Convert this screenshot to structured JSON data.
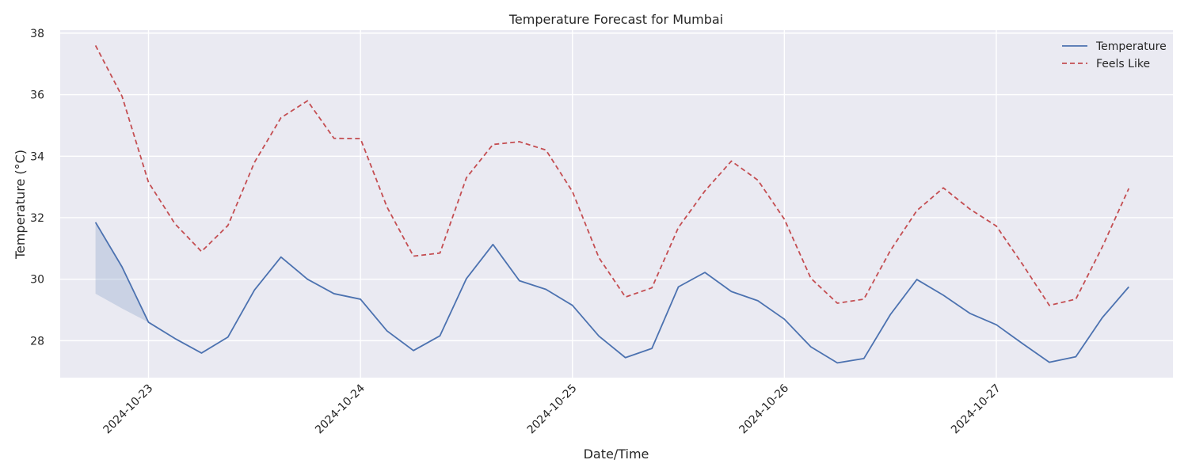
{
  "chart_data": {
    "type": "line",
    "title": "Temperature Forecast for Mumbai",
    "xlabel": "Date/Time",
    "ylabel": "Temperature (°C)",
    "x": [
      "2024-10-22 18:00",
      "2024-10-22 21:00",
      "2024-10-23 00:00",
      "2024-10-23 03:00",
      "2024-10-23 06:00",
      "2024-10-23 09:00",
      "2024-10-23 12:00",
      "2024-10-23 15:00",
      "2024-10-23 18:00",
      "2024-10-23 21:00",
      "2024-10-24 00:00",
      "2024-10-24 03:00",
      "2024-10-24 06:00",
      "2024-10-24 09:00",
      "2024-10-24 12:00",
      "2024-10-24 15:00",
      "2024-10-24 18:00",
      "2024-10-24 21:00",
      "2024-10-25 00:00",
      "2024-10-25 03:00",
      "2024-10-25 06:00",
      "2024-10-25 09:00",
      "2024-10-25 12:00",
      "2024-10-25 15:00",
      "2024-10-25 18:00",
      "2024-10-25 21:00",
      "2024-10-26 00:00",
      "2024-10-26 03:00",
      "2024-10-26 06:00",
      "2024-10-26 09:00",
      "2024-10-26 12:00",
      "2024-10-26 15:00",
      "2024-10-26 18:00",
      "2024-10-26 21:00",
      "2024-10-27 00:00",
      "2024-10-27 03:00",
      "2024-10-27 06:00",
      "2024-10-27 09:00",
      "2024-10-27 12:00",
      "2024-10-27 15:00"
    ],
    "xticks": [
      "2024-10-23",
      "2024-10-24",
      "2024-10-25",
      "2024-10-26",
      "2024-10-27"
    ],
    "yticks": [
      28,
      30,
      32,
      34,
      36,
      38
    ],
    "ylim": [
      26.8,
      38.1
    ],
    "xlim": [
      "2024-10-22 14:00",
      "2024-10-27 20:00"
    ],
    "grid": true,
    "legend_position": "top-right",
    "series": [
      {
        "name": "Temperature",
        "color": "#4c72b0",
        "style": "solid",
        "values": [
          31.85,
          30.4,
          28.6,
          28.07,
          27.6,
          28.12,
          29.65,
          30.72,
          30.0,
          29.53,
          29.35,
          28.32,
          27.68,
          28.16,
          30.02,
          31.13,
          29.95,
          29.67,
          29.15,
          28.15,
          27.45,
          27.75,
          29.75,
          30.22,
          29.6,
          29.3,
          28.7,
          27.8,
          27.28,
          27.42,
          28.85,
          29.99,
          29.48,
          28.89,
          28.52,
          27.9,
          27.3,
          27.48,
          28.75,
          29.75
        ]
      },
      {
        "name": "Feels Like",
        "color": "#c44e52",
        "style": "dashed",
        "values": [
          37.6,
          35.95,
          33.15,
          31.8,
          30.9,
          31.75,
          33.8,
          35.25,
          35.8,
          34.58,
          34.57,
          32.35,
          30.75,
          30.85,
          33.3,
          34.38,
          34.47,
          34.2,
          32.85,
          30.7,
          29.42,
          29.72,
          31.68,
          32.87,
          33.84,
          33.22,
          31.95,
          30.03,
          29.22,
          29.35,
          30.93,
          32.23,
          32.97,
          32.28,
          31.73,
          30.47,
          29.15,
          29.35,
          31.05,
          32.95
        ]
      }
    ],
    "band": {
      "color": "#4c72b0",
      "lower": [
        29.53,
        29.05,
        28.6
      ]
    }
  }
}
